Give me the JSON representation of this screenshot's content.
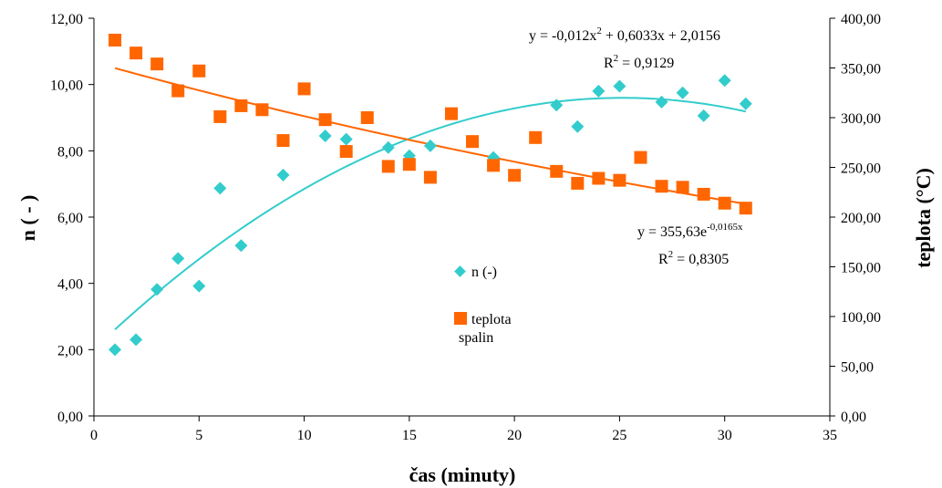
{
  "chart_data": {
    "type": "scatter",
    "xlabel": "čas (minuty)",
    "ylabel_left": "n ( - )",
    "ylabel_right": "teplota (°C)",
    "xlim": [
      0,
      35
    ],
    "xticks": [
      "0",
      "5",
      "10",
      "15",
      "20",
      "25",
      "30",
      "35"
    ],
    "ylim_left": [
      0,
      12
    ],
    "yticks_left": [
      "0,00",
      "2,00",
      "4,00",
      "6,00",
      "8,00",
      "10,00",
      "12,00"
    ],
    "ylim_right": [
      0,
      400
    ],
    "yticks_right": [
      "0,00",
      "50,00",
      "100,00",
      "150,00",
      "200,00",
      "250,00",
      "300,00",
      "350,00",
      "400,00"
    ],
    "grid": false,
    "legend_placement": "center",
    "series": [
      {
        "name": "n (-)",
        "axis": "left",
        "marker": "diamond",
        "color": "#33CCCC",
        "x": [
          1,
          2,
          3,
          4,
          5,
          6,
          7,
          9,
          11,
          12,
          14,
          15,
          16,
          19,
          22,
          23,
          24,
          25,
          27,
          28,
          29,
          30,
          31
        ],
        "y": [
          2.0,
          2.3,
          3.82,
          4.75,
          3.92,
          6.87,
          5.14,
          7.27,
          8.45,
          8.35,
          8.1,
          7.85,
          8.15,
          7.8,
          9.38,
          8.73,
          9.8,
          9.95,
          9.47,
          9.75,
          9.06,
          10.12,
          9.42
        ]
      },
      {
        "name": "teplota spalin",
        "legend_lines": [
          "teplota",
          "spalin"
        ],
        "axis": "right",
        "marker": "square",
        "color": "#FF6600",
        "x": [
          1,
          2,
          3,
          4,
          5,
          6,
          7,
          8,
          9,
          10,
          11,
          12,
          13,
          14,
          15,
          16,
          17,
          18,
          19,
          20,
          21,
          22,
          23,
          24,
          25,
          26,
          27,
          28,
          29,
          30,
          31
        ],
        "y": [
          378,
          365,
          354,
          327,
          347,
          301,
          312,
          308,
          277,
          329,
          298,
          266,
          300,
          251,
          253,
          240,
          304,
          276,
          252,
          242,
          280,
          246,
          234,
          239,
          237,
          260,
          231,
          230,
          223,
          214,
          209
        ]
      }
    ],
    "trendlines": [
      {
        "series": "n (-)",
        "type": "polynomial",
        "coefficients": [
          -0.012,
          0.6033,
          2.0156
        ],
        "color": "#33CCCC",
        "x_range": [
          1,
          31
        ],
        "equation_parts": [
          "y = -0,012x",
          "2",
          " + 0,6033x + 2,0156"
        ],
        "r2_parts": [
          "R",
          "2",
          " = 0,9129"
        ]
      },
      {
        "series": "teplota spalin",
        "type": "exponential",
        "a": 355.63,
        "b": -0.0165,
        "color": "#FF6600",
        "x_range": [
          1,
          31
        ],
        "equation_parts": [
          "y = 355,63e",
          "-0,0165x"
        ],
        "r2_parts": [
          "R",
          "2",
          " = 0,8305"
        ]
      }
    ]
  }
}
